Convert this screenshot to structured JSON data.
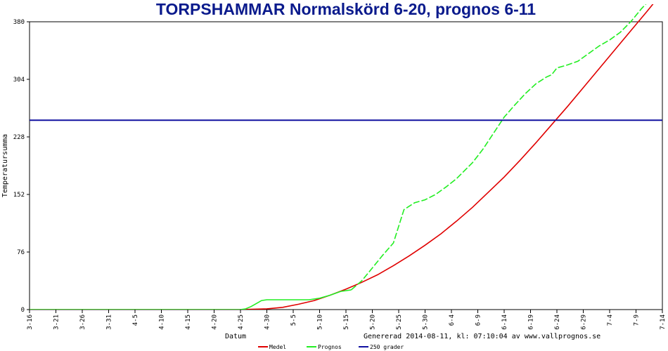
{
  "chart_data": {
    "type": "line",
    "title": "TORPSHAMMAR Normalskörd 6-20, prognos 6-11",
    "xlabel": "Datum",
    "ylabel": "Temperatursumma",
    "ylim": [
      0,
      380
    ],
    "yticks": [
      "0",
      "76",
      "152",
      "228",
      "304",
      "380"
    ],
    "categories": [
      "3-16",
      "3-21",
      "3-26",
      "3-31",
      "4-5",
      "4-10",
      "4-15",
      "4-20",
      "4-25",
      "4-30",
      "5-5",
      "5-10",
      "5-15",
      "5-20",
      "5-25",
      "5-30",
      "6-4",
      "6-9",
      "6-14",
      "6-19",
      "6-24",
      "6-29",
      "7-4",
      "7-9",
      "7-14"
    ],
    "xlim_days": [
      0,
      120
    ],
    "series": [
      {
        "name": "Medel",
        "color": "#e00000",
        "style": "solid",
        "points": [
          [
            0,
            0
          ],
          [
            40,
            0
          ],
          [
            42,
            0.5
          ],
          [
            45,
            1
          ],
          [
            48,
            3
          ],
          [
            51,
            7
          ],
          [
            54,
            12
          ],
          [
            57,
            19
          ],
          [
            60,
            27
          ],
          [
            63,
            36
          ],
          [
            66,
            46
          ],
          [
            69,
            58
          ],
          [
            72,
            71
          ],
          [
            75,
            85
          ],
          [
            78,
            100
          ],
          [
            81,
            117
          ],
          [
            84,
            135
          ],
          [
            87,
            155
          ],
          [
            90,
            175
          ],
          [
            93,
            197
          ],
          [
            96,
            220
          ],
          [
            99,
            244
          ],
          [
            102,
            268
          ],
          [
            105,
            293
          ],
          [
            108,
            318
          ],
          [
            111,
            343
          ],
          [
            114,
            368
          ],
          [
            117,
            393
          ],
          [
            119,
            410
          ]
        ]
      },
      {
        "name": "Prognos",
        "color": "#22ee22",
        "style": "solid-then-dashed",
        "points": [
          [
            0,
            0
          ],
          [
            40,
            0
          ],
          [
            41,
            1
          ],
          [
            42,
            4
          ],
          [
            43,
            8
          ],
          [
            44,
            12
          ],
          [
            45,
            13
          ],
          [
            47,
            13
          ],
          [
            49,
            13
          ],
          [
            51,
            13
          ],
          [
            53,
            13
          ],
          [
            55,
            15
          ],
          [
            57,
            19
          ],
          [
            59,
            24
          ],
          [
            61,
            26
          ],
          [
            63,
            38
          ],
          [
            65,
            55
          ],
          [
            67,
            72
          ],
          [
            69,
            88
          ],
          [
            70,
            110
          ],
          [
            71,
            132
          ],
          [
            73,
            141
          ],
          [
            75,
            145
          ],
          [
            77,
            152
          ],
          [
            79,
            162
          ],
          [
            81,
            173
          ],
          [
            84,
            194
          ],
          [
            86,
            212
          ],
          [
            88,
            233
          ],
          [
            90,
            254
          ],
          [
            92,
            270
          ],
          [
            94,
            285
          ],
          [
            96,
            298
          ],
          [
            98,
            307
          ],
          [
            99,
            310
          ],
          [
            100,
            319
          ],
          [
            102,
            323
          ],
          [
            104,
            328
          ],
          [
            106,
            338
          ],
          [
            108,
            348
          ],
          [
            110,
            356
          ],
          [
            112,
            366
          ],
          [
            114,
            380
          ],
          [
            116,
            397
          ],
          [
            118,
            412
          ]
        ]
      },
      {
        "name": "250 grader",
        "color": "#1010a0",
        "style": "solid",
        "points": [
          [
            0,
            250
          ],
          [
            120,
            250
          ]
        ]
      }
    ],
    "legend_position": "bottom",
    "footer": "Genererad 2014-08-11, kl: 07:10:04 av www.vallprognos.se"
  }
}
